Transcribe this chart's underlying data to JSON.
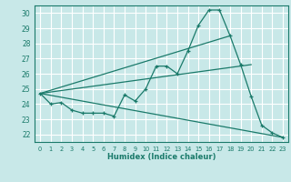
{
  "title": "",
  "xlabel": "Humidex (Indice chaleur)",
  "ylabel": "",
  "background_color": "#c8e8e8",
  "grid_color": "#ffffff",
  "line_color": "#1a7a6a",
  "xlim": [
    -0.5,
    23.5
  ],
  "ylim": [
    21.5,
    30.5
  ],
  "xticks": [
    0,
    1,
    2,
    3,
    4,
    5,
    6,
    7,
    8,
    9,
    10,
    11,
    12,
    13,
    14,
    15,
    16,
    17,
    18,
    19,
    20,
    21,
    22,
    23
  ],
  "yticks": [
    22,
    23,
    24,
    25,
    26,
    27,
    28,
    29,
    30
  ],
  "series": {
    "line1": {
      "x": [
        0,
        1,
        2,
        3,
        4,
        5,
        6,
        7,
        8,
        9,
        10,
        11,
        12,
        13,
        14,
        15,
        16,
        17,
        18,
        19,
        20,
        21,
        22,
        23
      ],
      "y": [
        24.7,
        24.0,
        24.1,
        23.6,
        23.4,
        23.4,
        23.4,
        23.2,
        24.6,
        24.2,
        25.0,
        26.5,
        26.5,
        26.0,
        27.5,
        29.2,
        30.2,
        30.2,
        28.5,
        26.6,
        24.5,
        22.6,
        22.1,
        21.8
      ]
    },
    "line2": {
      "x": [
        0,
        18
      ],
      "y": [
        24.7,
        28.5
      ]
    },
    "line3": {
      "x": [
        0,
        20
      ],
      "y": [
        24.7,
        26.6
      ]
    },
    "line4": {
      "x": [
        0,
        23
      ],
      "y": [
        24.7,
        21.8
      ]
    }
  }
}
